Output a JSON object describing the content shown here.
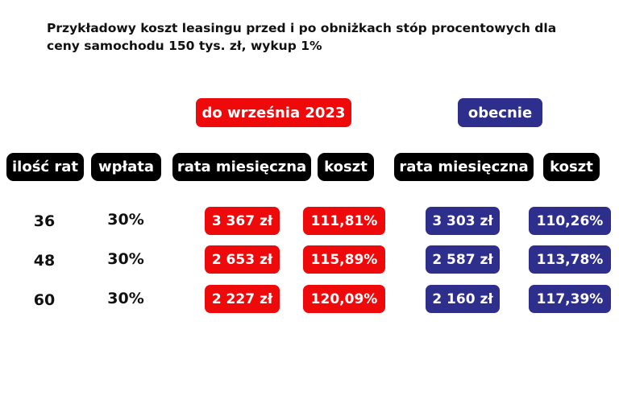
{
  "title": "Przykładowy koszt leasingu przed i po obniżkach stóp procentowych dla ceny samochodu 150 tys. zł, wykup 1%",
  "colors": {
    "before": "#ee0a0a",
    "now": "#2e2f8c",
    "header": "#000000"
  },
  "sections": {
    "before": "do września 2023",
    "now": "obecnie"
  },
  "headers": {
    "installments": "ilość rat",
    "down_payment": "wpłata",
    "monthly_before": "rata miesięczna",
    "cost_before": "koszt",
    "monthly_now": "rata miesięczna",
    "cost_now": "koszt"
  },
  "rows": [
    {
      "installments": "36",
      "down_payment": "30%",
      "monthly_before": "3 367 zł",
      "cost_before": "111,81%",
      "monthly_now": "3 303 zł",
      "cost_now": "110,26%"
    },
    {
      "installments": "48",
      "down_payment": "30%",
      "monthly_before": "2 653 zł",
      "cost_before": "115,89%",
      "monthly_now": "2 587 zł",
      "cost_now": "113,78%"
    },
    {
      "installments": "60",
      "down_payment": "30%",
      "monthly_before": "2 227 zł",
      "cost_before": "120,09%",
      "monthly_now": "2 160 zł",
      "cost_now": "117,39%"
    }
  ],
  "chart_data": {
    "type": "table",
    "title": "Przykładowy koszt leasingu przed i po obniżkach stóp procentowych dla ceny samochodu 150 tys. zł, wykup 1%",
    "column_groups": [
      "do września 2023",
      "obecnie"
    ],
    "columns": [
      "ilość rat",
      "wpłata",
      "rata miesięczna",
      "koszt",
      "rata miesięczna",
      "koszt"
    ],
    "values": [
      [
        36,
        30,
        3367,
        111.81,
        3303,
        110.26
      ],
      [
        48,
        30,
        2653,
        115.89,
        2587,
        113.78
      ],
      [
        60,
        30,
        2227,
        120.09,
        2160,
        117.39
      ]
    ]
  }
}
